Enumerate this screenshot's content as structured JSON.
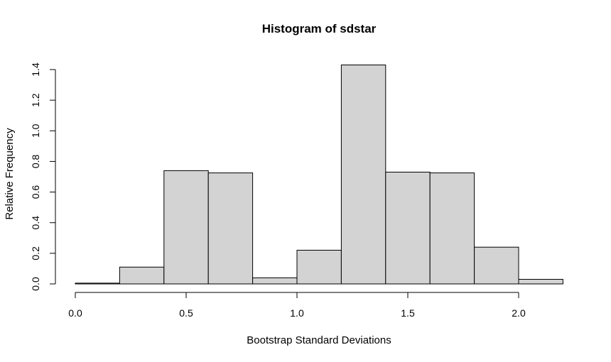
{
  "chart_data": {
    "type": "bar",
    "title": "Histogram of sdstar",
    "xlabel": "Bootstrap Standard Deviations",
    "ylabel": "Relative Frequency",
    "bin_edges": [
      0.0,
      0.2,
      0.4,
      0.6,
      0.8,
      1.0,
      1.2,
      1.4,
      1.6,
      1.8,
      2.0,
      2.2
    ],
    "values": [
      0.005,
      0.11,
      0.74,
      0.725,
      0.04,
      0.22,
      1.43,
      0.73,
      0.725,
      0.24,
      0.03
    ],
    "xlim": [
      0.0,
      2.2
    ],
    "ylim": [
      0.0,
      1.4
    ],
    "x_ticks": [
      0.0,
      0.5,
      1.0,
      1.5,
      2.0
    ],
    "x_tick_labels": [
      "0.0",
      "0.5",
      "1.0",
      "1.5",
      "2.0"
    ],
    "y_ticks": [
      0.0,
      0.2,
      0.4,
      0.6,
      0.8,
      1.0,
      1.2,
      1.4
    ],
    "y_tick_labels": [
      "0.0",
      "0.2",
      "0.4",
      "0.6",
      "0.8",
      "1.0",
      "1.2",
      "1.4"
    ],
    "grid": false,
    "colors": {
      "bar_fill": "#d3d3d3",
      "bar_stroke": "#000000"
    }
  }
}
